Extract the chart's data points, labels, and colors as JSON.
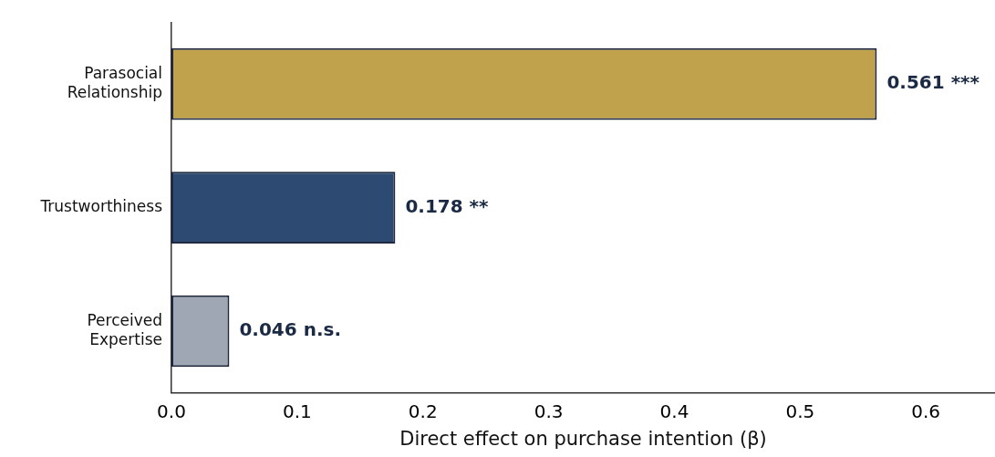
{
  "chart_data": {
    "type": "bar",
    "orientation": "horizontal",
    "xlabel": "Direct effect on purchase intention (β)",
    "categories": [
      "Parasocial Relationship",
      "Trustworthiness",
      "Perceived Expertise"
    ],
    "values": [
      0.561,
      0.178,
      0.046
    ],
    "colors": [
      "#c0a14c",
      "#2c4a72",
      "#9ea7b3"
    ],
    "value_labels": [
      "0.561 ***",
      "0.178 **",
      "0.046 n.s."
    ],
    "xlim": [
      0,
      0.655
    ],
    "xticks": [
      {
        "value": 0,
        "label": "0.0"
      },
      {
        "value": 0.1,
        "label": "0.1"
      },
      {
        "value": 0.2,
        "label": "0.2"
      },
      {
        "value": 0.3,
        "label": "0.3"
      },
      {
        "value": 0.4,
        "label": "0.4"
      },
      {
        "value": 0.5,
        "label": "0.5"
      },
      {
        "value": 0.6,
        "label": "0.6"
      }
    ],
    "grid": false,
    "legend": false
  }
}
